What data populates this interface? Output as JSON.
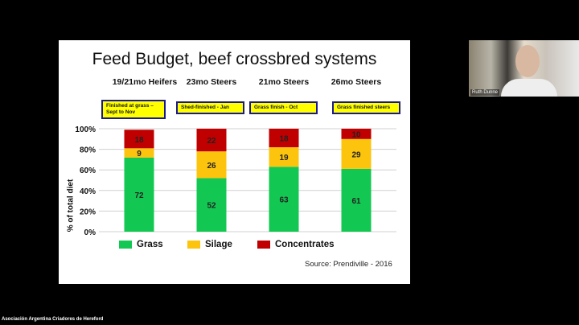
{
  "slide": {
    "title": "Feed Budget, beef crossbred systems",
    "columns": [
      {
        "heading": "19/21mo Heifers",
        "tag": "Finished  at grass – Sept to Nov"
      },
      {
        "heading": "23mo Steers",
        "tag": "Shed-finished  - Jan"
      },
      {
        "heading": "21mo Steers",
        "tag": "Grass finish  - Oct"
      },
      {
        "heading": "26mo Steers",
        "tag": "Grass finished  steers"
      }
    ],
    "source": "Source: Prendiville - 2016"
  },
  "chart_data": {
    "type": "bar",
    "stacked": true,
    "categories": [
      "19/21mo Heifers",
      "23mo Steers",
      "21mo Steers",
      "26mo Steers"
    ],
    "series": [
      {
        "name": "Grass",
        "color": "#12c852",
        "values": [
          72,
          52,
          63,
          61
        ]
      },
      {
        "name": "Silage",
        "color": "#fcc40c",
        "values": [
          9,
          26,
          19,
          29
        ]
      },
      {
        "name": "Concentrates",
        "color": "#c00000",
        "values": [
          18,
          22,
          18,
          10
        ]
      }
    ],
    "ylabel": "% of total diet",
    "ylim": [
      0,
      100
    ],
    "yticks": [
      "0%",
      "20%",
      "40%",
      "60%",
      "80%",
      "100%"
    ],
    "legend": "bottom",
    "grid": true
  },
  "video": {
    "participant": "Ruth Dunne"
  },
  "footer": {
    "org": "Asociación Argentina Criadores de Hereford"
  }
}
